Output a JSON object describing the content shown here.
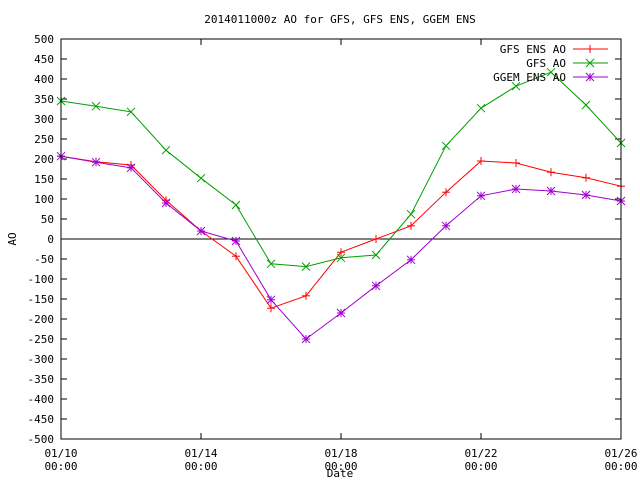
{
  "chart_data": {
    "type": "line",
    "title": "2014011000z AO for GFS, GFS ENS, GGEM ENS",
    "xlabel": "Date",
    "ylabel": "AO",
    "xlim": [
      "2014-01-10T00:00",
      "2014-01-26T00:00"
    ],
    "ylim": [
      -500,
      500
    ],
    "y_ticks": [
      -500,
      -450,
      -400,
      -350,
      -300,
      -250,
      -200,
      -150,
      -100,
      -50,
      0,
      50,
      100,
      150,
      200,
      250,
      300,
      350,
      400,
      450,
      500
    ],
    "x_ticks": [
      {
        "date": "2014-01-10T00:00",
        "line1": "01/10",
        "line2": "00:00"
      },
      {
        "date": "2014-01-14T00:00",
        "line1": "01/14",
        "line2": "00:00"
      },
      {
        "date": "2014-01-18T00:00",
        "line1": "01/18",
        "line2": "00:00"
      },
      {
        "date": "2014-01-22T00:00",
        "line1": "01/22",
        "line2": "00:00"
      },
      {
        "date": "2014-01-26T00:00",
        "line1": "01/26",
        "line2": "00:00"
      }
    ],
    "x": [
      "2014-01-10T00:00",
      "2014-01-11T00:00",
      "2014-01-12T00:00",
      "2014-01-13T00:00",
      "2014-01-14T00:00",
      "2014-01-15T00:00",
      "2014-01-16T00:00",
      "2014-01-17T00:00",
      "2014-01-18T00:00",
      "2014-01-19T00:00",
      "2014-01-20T00:00",
      "2014-01-21T00:00",
      "2014-01-22T00:00",
      "2014-01-23T00:00",
      "2014-01-24T00:00",
      "2014-01-25T00:00",
      "2014-01-26T00:00"
    ],
    "zero_line": true,
    "grid": false,
    "legend_position": "top-right",
    "series": [
      {
        "name": "GFS ENS AO",
        "color": "#ff0000",
        "marker": "plus",
        "values": [
          207,
          193,
          185,
          97,
          20,
          -43,
          -173,
          -142,
          -33,
          0,
          33,
          117,
          195,
          190,
          167,
          153,
          132
        ]
      },
      {
        "name": "GFS AO",
        "color": "#00a000",
        "marker": "x",
        "values": [
          345,
          332,
          318,
          222,
          152,
          85,
          -62,
          -69,
          -47,
          -40,
          62,
          233,
          327,
          382,
          417,
          335,
          240
        ]
      },
      {
        "name": "GGEM ENS AO",
        "color": "#a000d0",
        "marker": "star",
        "values": [
          207,
          192,
          178,
          90,
          20,
          -5,
          -152,
          -250,
          -185,
          -117,
          -52,
          33,
          108,
          125,
          120,
          110,
          95
        ]
      }
    ]
  }
}
